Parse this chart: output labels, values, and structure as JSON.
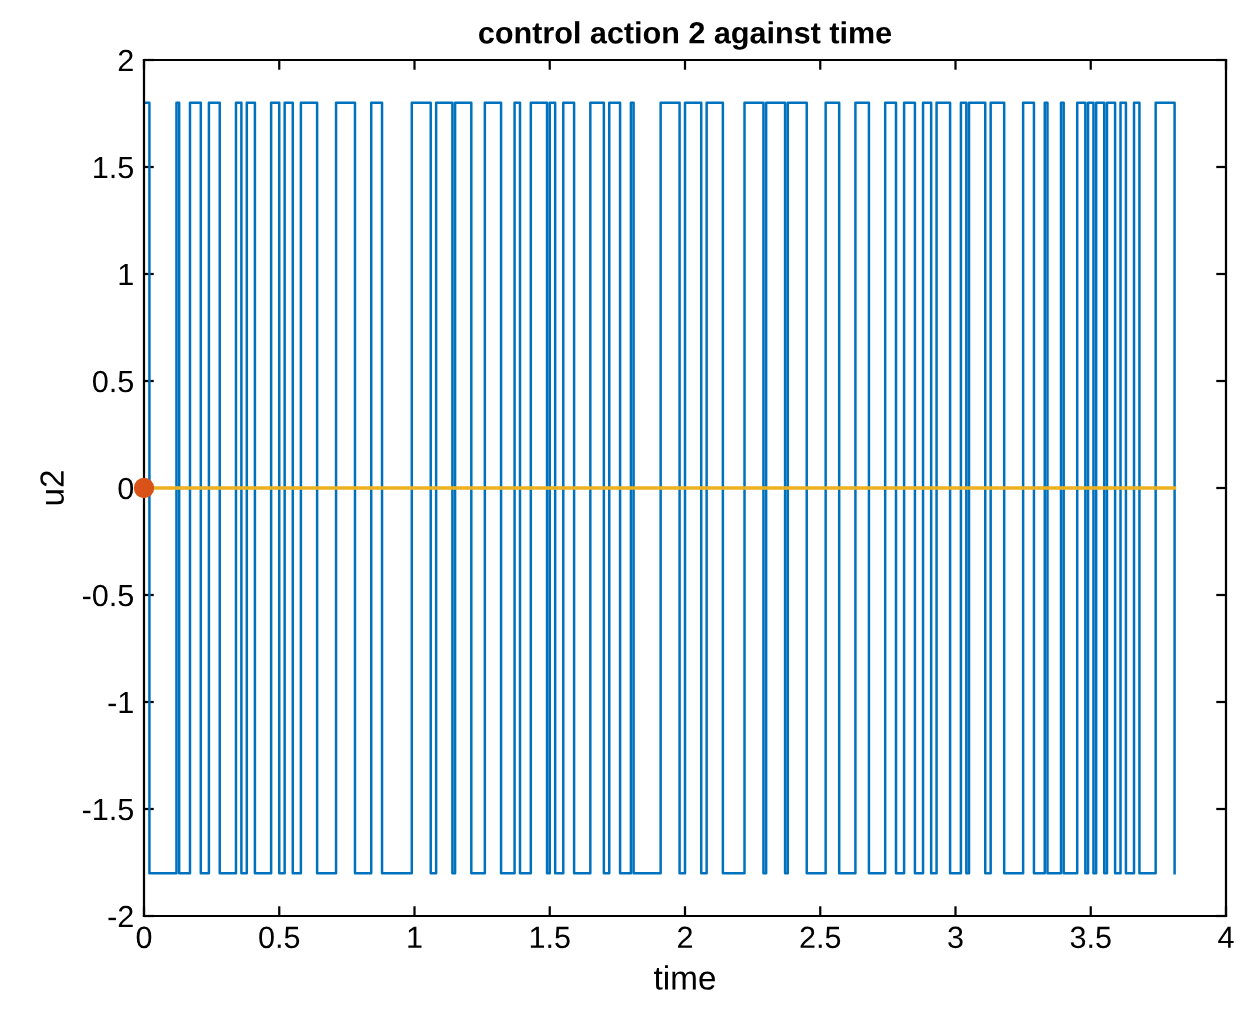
{
  "chart_data": {
    "type": "step",
    "title": "control action 2 against time",
    "xlabel": "time",
    "ylabel": "u2",
    "xlim": [
      0,
      4
    ],
    "xticks": [
      0,
      0.5,
      1,
      1.5,
      2,
      2.5,
      3,
      3.5,
      4
    ],
    "ylim": [
      -2,
      2
    ],
    "yticks": [
      -2,
      -1.5,
      -1,
      -0.5,
      0,
      0.5,
      1,
      1.5,
      2
    ],
    "grid": false,
    "series": [
      {
        "color": "#0072bd",
        "x": [
          0.0,
          0.02,
          0.12,
          0.13,
          0.17,
          0.21,
          0.24,
          0.28,
          0.34,
          0.36,
          0.38,
          0.41,
          0.47,
          0.5,
          0.52,
          0.55,
          0.58,
          0.64,
          0.71,
          0.78,
          0.84,
          0.88,
          0.99,
          1.06,
          1.08,
          1.14,
          1.15,
          1.21,
          1.26,
          1.32,
          1.37,
          1.39,
          1.43,
          1.49,
          1.5,
          1.52,
          1.55,
          1.59,
          1.65,
          1.7,
          1.72,
          1.76,
          1.8,
          1.81,
          1.91,
          1.98,
          2.0,
          2.06,
          2.08,
          2.14,
          2.22,
          2.29,
          2.3,
          2.37,
          2.38,
          2.45,
          2.52,
          2.57,
          2.63,
          2.68,
          2.74,
          2.78,
          2.81,
          2.85,
          2.88,
          2.91,
          2.93,
          2.98,
          3.02,
          3.04,
          3.05,
          3.11,
          3.13,
          3.18,
          3.25,
          3.29,
          3.33,
          3.34,
          3.39,
          3.4,
          3.45,
          3.48,
          3.49,
          3.51,
          3.52,
          3.55,
          3.56,
          3.59,
          3.61,
          3.63,
          3.66,
          3.68,
          3.74,
          3.81
        ],
        "values": [
          1.8,
          -1.8,
          1.8,
          -1.8,
          1.8,
          -1.8,
          1.8,
          -1.8,
          1.8,
          -1.8,
          1.8,
          -1.8,
          1.8,
          -1.8,
          1.8,
          -1.8,
          1.8,
          -1.8,
          1.8,
          -1.8,
          1.8,
          -1.8,
          1.8,
          -1.8,
          1.8,
          -1.8,
          1.8,
          -1.8,
          1.8,
          -1.8,
          1.8,
          -1.8,
          1.8,
          -1.8,
          1.8,
          -1.8,
          1.8,
          -1.8,
          1.8,
          -1.8,
          1.8,
          -1.8,
          1.8,
          -1.8,
          1.8,
          -1.8,
          1.8,
          -1.8,
          1.8,
          -1.8,
          1.8,
          -1.8,
          1.8,
          -1.8,
          1.8,
          -1.8,
          1.8,
          -1.8,
          1.8,
          -1.8,
          1.8,
          -1.8,
          1.8,
          -1.8,
          1.8,
          -1.8,
          1.8,
          -1.8,
          1.8,
          -1.8,
          1.8,
          -1.8,
          1.8,
          -1.8,
          1.8,
          -1.8,
          1.8,
          -1.8,
          1.8,
          -1.8,
          1.8,
          -1.8,
          1.8,
          -1.8,
          1.8,
          -1.8,
          1.8,
          -1.8,
          1.8,
          -1.8,
          1.8,
          -1.8,
          1.8,
          -1.8
        ]
      },
      {
        "type": "line",
        "color": "#edb120",
        "x": [
          0,
          3.81
        ],
        "values": [
          0,
          0
        ]
      },
      {
        "type": "scatter",
        "color": "#d95319",
        "marker": "circle",
        "x": [
          0
        ],
        "values": [
          0
        ]
      }
    ]
  }
}
